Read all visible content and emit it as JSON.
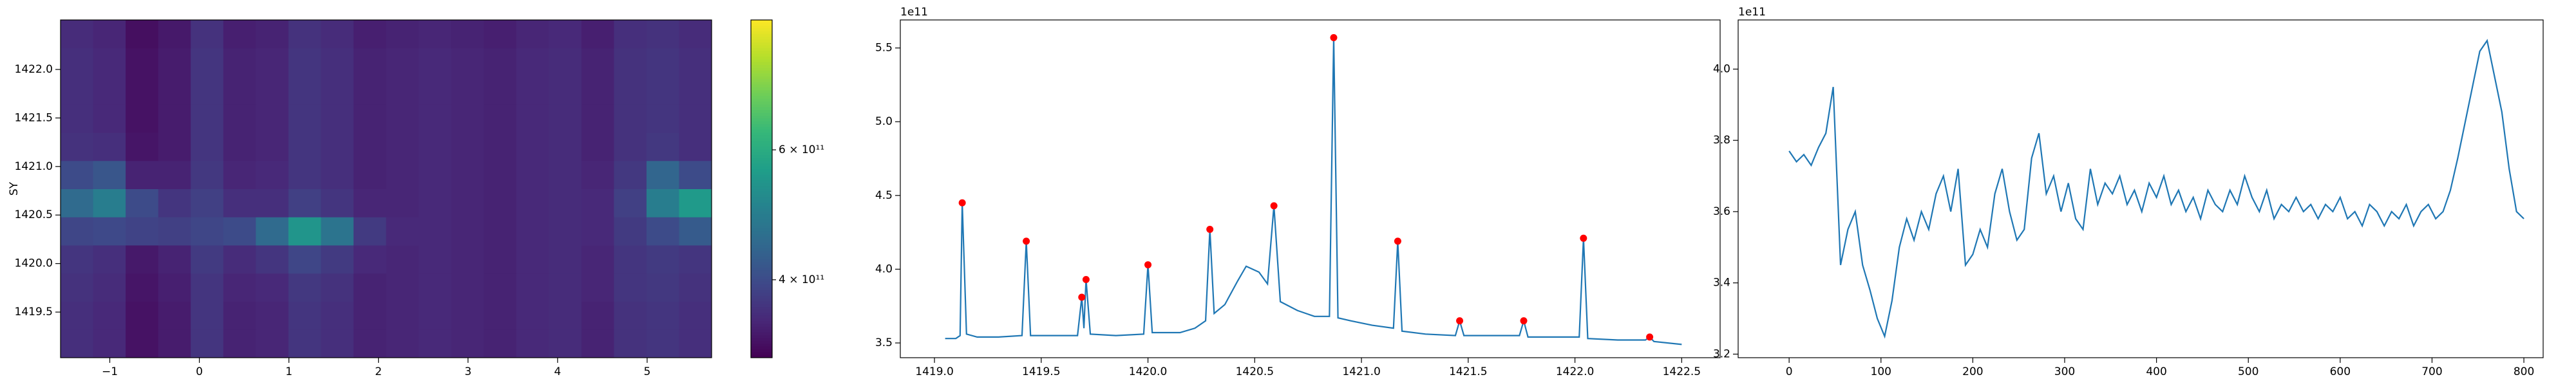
{
  "chart_data": [
    {
      "type": "heatmap",
      "ylabel": "SY",
      "colormap": "viridis",
      "xlim": [
        -1.55,
        5.72
      ],
      "ylim": [
        1419.03,
        1422.51
      ],
      "xticks": [
        {
          "value": -1,
          "label": "−1"
        },
        0,
        1,
        2,
        3,
        4,
        5
      ],
      "yticks": [
        1419.5,
        {
          "value": 1420,
          "label": "1420.0"
        },
        1420.5,
        {
          "value": 1421,
          "label": "1421.0"
        },
        1421.5,
        {
          "value": 1422,
          "label": "1422.0"
        }
      ],
      "clim": [
        280000000000.0,
        800000000000.0
      ],
      "cticks": [
        {
          "value": 400000000000.0,
          "label": "4 × 10¹¹"
        },
        {
          "value": 600000000000.0,
          "label": "6 × 10¹¹"
        }
      ],
      "z": [
        [
          350000000000.0,
          340000000000.0,
          305000000000.0,
          320000000000.0,
          360000000000.0,
          330000000000.0,
          335000000000.0,
          360000000000.0,
          350000000000.0,
          330000000000.0,
          335000000000.0,
          340000000000.0,
          335000000000.0,
          330000000000.0,
          340000000000.0,
          345000000000.0,
          330000000000.0,
          355000000000.0,
          360000000000.0,
          350000000000.0
        ],
        [
          350000000000.0,
          340000000000.0,
          305000000000.0,
          320000000000.0,
          360000000000.0,
          330000000000.0,
          335000000000.0,
          360000000000.0,
          350000000000.0,
          330000000000.0,
          335000000000.0,
          340000000000.0,
          335000000000.0,
          330000000000.0,
          340000000000.0,
          345000000000.0,
          330000000000.0,
          355000000000.0,
          360000000000.0,
          350000000000.0
        ],
        [
          355000000000.0,
          345000000000.0,
          310000000000.0,
          325000000000.0,
          360000000000.0,
          335000000000.0,
          340000000000.0,
          365000000000.0,
          355000000000.0,
          330000000000.0,
          335000000000.0,
          340000000000.0,
          335000000000.0,
          330000000000.0,
          340000000000.0,
          345000000000.0,
          335000000000.0,
          360000000000.0,
          365000000000.0,
          355000000000.0
        ],
        [
          360000000000.0,
          350000000000.0,
          315000000000.0,
          330000000000.0,
          370000000000.0,
          345000000000.0,
          360000000000.0,
          390000000000.0,
          370000000000.0,
          340000000000.0,
          335000000000.0,
          340000000000.0,
          335000000000.0,
          330000000000.0,
          340000000000.0,
          345000000000.0,
          335000000000.0,
          360000000000.0,
          370000000000.0,
          360000000000.0
        ],
        [
          390000000000.0,
          395000000000.0,
          385000000000.0,
          380000000000.0,
          390000000000.0,
          400000000000.0,
          460000000000.0,
          550000000000.0,
          480000000000.0,
          370000000000.0,
          340000000000.0,
          340000000000.0,
          335000000000.0,
          330000000000.0,
          340000000000.0,
          345000000000.0,
          340000000000.0,
          370000000000.0,
          400000000000.0,
          430000000000.0
        ],
        [
          460000000000.0,
          500000000000.0,
          400000000000.0,
          360000000000.0,
          380000000000.0,
          350000000000.0,
          350000000000.0,
          380000000000.0,
          360000000000.0,
          335000000000.0,
          335000000000.0,
          340000000000.0,
          335000000000.0,
          330000000000.0,
          340000000000.0,
          345000000000.0,
          340000000000.0,
          380000000000.0,
          500000000000.0,
          560000000000.0
        ],
        [
          400000000000.0,
          420000000000.0,
          330000000000.0,
          330000000000.0,
          365000000000.0,
          335000000000.0,
          340000000000.0,
          360000000000.0,
          350000000000.0,
          330000000000.0,
          335000000000.0,
          340000000000.0,
          335000000000.0,
          330000000000.0,
          340000000000.0,
          345000000000.0,
          335000000000.0,
          365000000000.0,
          450000000000.0,
          400000000000.0
        ],
        [
          355000000000.0,
          350000000000.0,
          310000000000.0,
          320000000000.0,
          360000000000.0,
          330000000000.0,
          335000000000.0,
          360000000000.0,
          350000000000.0,
          330000000000.0,
          335000000000.0,
          340000000000.0,
          335000000000.0,
          330000000000.0,
          340000000000.0,
          345000000000.0,
          330000000000.0,
          355000000000.0,
          365000000000.0,
          350000000000.0
        ],
        [
          350000000000.0,
          340000000000.0,
          305000000000.0,
          320000000000.0,
          360000000000.0,
          330000000000.0,
          335000000000.0,
          360000000000.0,
          350000000000.0,
          330000000000.0,
          335000000000.0,
          340000000000.0,
          335000000000.0,
          330000000000.0,
          340000000000.0,
          345000000000.0,
          330000000000.0,
          355000000000.0,
          360000000000.0,
          350000000000.0
        ],
        [
          350000000000.0,
          340000000000.0,
          305000000000.0,
          320000000000.0,
          360000000000.0,
          330000000000.0,
          335000000000.0,
          360000000000.0,
          350000000000.0,
          330000000000.0,
          335000000000.0,
          340000000000.0,
          335000000000.0,
          330000000000.0,
          340000000000.0,
          345000000000.0,
          330000000000.0,
          355000000000.0,
          360000000000.0,
          350000000000.0
        ],
        [
          350000000000.0,
          340000000000.0,
          305000000000.0,
          320000000000.0,
          360000000000.0,
          330000000000.0,
          335000000000.0,
          360000000000.0,
          350000000000.0,
          330000000000.0,
          335000000000.0,
          340000000000.0,
          335000000000.0,
          330000000000.0,
          340000000000.0,
          345000000000.0,
          330000000000.0,
          355000000000.0,
          360000000000.0,
          350000000000.0
        ],
        [
          345000000000.0,
          335000000000.0,
          300000000000.0,
          315000000000.0,
          355000000000.0,
          325000000000.0,
          330000000000.0,
          355000000000.0,
          345000000000.0,
          325000000000.0,
          330000000000.0,
          335000000000.0,
          330000000000.0,
          325000000000.0,
          335000000000.0,
          340000000000.0,
          325000000000.0,
          350000000000.0,
          355000000000.0,
          345000000000.0
        ]
      ]
    },
    {
      "type": "line",
      "offset_text": "1e11",
      "color": "#1f77b4",
      "xlim": [
        1418.84,
        1422.68
      ],
      "ylim": [
        3.4,
        5.69
      ],
      "xticks": [
        {
          "value": 1419,
          "label": "1419.0"
        },
        1419.5,
        {
          "value": 1420,
          "label": "1420.0"
        },
        1420.5,
        {
          "value": 1421,
          "label": "1421.0"
        },
        1421.5,
        {
          "value": 1422,
          "label": "1422.0"
        },
        1422.5
      ],
      "yticks": [
        3.5,
        {
          "value": 4,
          "label": "4.0"
        },
        4.5,
        {
          "value": 5,
          "label": "5.0"
        },
        5.5
      ],
      "x": [
        1419.05,
        1419.1,
        1419.12,
        1419.13,
        1419.15,
        1419.2,
        1419.3,
        1419.41,
        1419.43,
        1419.45,
        1419.55,
        1419.67,
        1419.69,
        1419.7,
        1419.71,
        1419.73,
        1419.85,
        1419.98,
        1420.0,
        1420.02,
        1420.15,
        1420.22,
        1420.27,
        1420.29,
        1420.31,
        1420.36,
        1420.42,
        1420.46,
        1420.52,
        1420.56,
        1420.59,
        1420.62,
        1420.7,
        1420.78,
        1420.85,
        1420.87,
        1420.89,
        1420.95,
        1421.05,
        1421.15,
        1421.17,
        1421.19,
        1421.3,
        1421.44,
        1421.46,
        1421.48,
        1421.6,
        1421.74,
        1421.76,
        1421.78,
        1421.9,
        1422.02,
        1422.04,
        1422.06,
        1422.2,
        1422.33,
        1422.35,
        1422.37,
        1422.5
      ],
      "values": [
        3.53,
        3.53,
        3.55,
        4.45,
        3.56,
        3.54,
        3.54,
        3.55,
        4.19,
        3.55,
        3.55,
        3.55,
        3.81,
        3.6,
        3.93,
        3.56,
        3.55,
        3.56,
        4.03,
        3.57,
        3.57,
        3.6,
        3.65,
        4.27,
        3.7,
        3.76,
        3.92,
        4.02,
        3.98,
        3.9,
        4.43,
        3.78,
        3.72,
        3.68,
        3.68,
        5.57,
        3.67,
        3.65,
        3.62,
        3.6,
        4.19,
        3.58,
        3.56,
        3.55,
        3.65,
        3.55,
        3.55,
        3.55,
        3.65,
        3.54,
        3.54,
        3.54,
        4.21,
        3.53,
        3.52,
        3.52,
        3.54,
        3.51,
        3.49
      ],
      "peaks": {
        "color": "red",
        "x": [
          1419.13,
          1419.43,
          1419.69,
          1419.71,
          1420.0,
          1420.29,
          1420.59,
          1420.87,
          1421.17,
          1421.46,
          1421.76,
          1422.04,
          1422.35
        ],
        "values": [
          4.45,
          4.19,
          3.81,
          3.93,
          4.03,
          4.27,
          4.43,
          5.57,
          4.19,
          3.65,
          3.65,
          4.21,
          3.54
        ]
      }
    },
    {
      "type": "line",
      "offset_text": "1e11",
      "color": "#1f77b4",
      "xlim": [
        -55.5,
        821
      ],
      "ylim": [
        3.19,
        4.138
      ],
      "xticks": [
        0,
        100,
        200,
        300,
        400,
        500,
        600,
        700,
        800
      ],
      "yticks": [
        3.2,
        3.4,
        3.6,
        3.8,
        {
          "value": 4,
          "label": "4.0"
        }
      ],
      "x": [
        0,
        8,
        16,
        24,
        32,
        40,
        48,
        56,
        64,
        72,
        80,
        88,
        96,
        104,
        112,
        120,
        128,
        136,
        144,
        152,
        160,
        168,
        176,
        184,
        192,
        200,
        208,
        216,
        224,
        232,
        240,
        248,
        256,
        264,
        272,
        280,
        288,
        296,
        304,
        312,
        320,
        328,
        336,
        344,
        352,
        360,
        368,
        376,
        384,
        392,
        400,
        408,
        416,
        424,
        432,
        440,
        448,
        456,
        464,
        472,
        480,
        488,
        496,
        504,
        512,
        520,
        528,
        536,
        544,
        552,
        560,
        568,
        576,
        584,
        592,
        600,
        608,
        616,
        624,
        632,
        640,
        648,
        656,
        664,
        672,
        680,
        688,
        696,
        704,
        712,
        720,
        728,
        736,
        744,
        752,
        760,
        768,
        776,
        784,
        792,
        800
      ],
      "values": [
        3.77,
        3.74,
        3.76,
        3.73,
        3.78,
        3.82,
        3.95,
        3.45,
        3.55,
        3.6,
        3.45,
        3.38,
        3.3,
        3.25,
        3.35,
        3.5,
        3.58,
        3.52,
        3.6,
        3.55,
        3.65,
        3.7,
        3.6,
        3.72,
        3.45,
        3.48,
        3.55,
        3.5,
        3.65,
        3.72,
        3.6,
        3.52,
        3.55,
        3.75,
        3.82,
        3.65,
        3.7,
        3.6,
        3.68,
        3.58,
        3.55,
        3.72,
        3.62,
        3.68,
        3.65,
        3.7,
        3.62,
        3.66,
        3.6,
        3.68,
        3.64,
        3.7,
        3.62,
        3.66,
        3.6,
        3.64,
        3.58,
        3.66,
        3.62,
        3.6,
        3.66,
        3.62,
        3.7,
        3.64,
        3.6,
        3.66,
        3.58,
        3.62,
        3.6,
        3.64,
        3.6,
        3.62,
        3.58,
        3.62,
        3.6,
        3.64,
        3.58,
        3.6,
        3.56,
        3.62,
        3.6,
        3.56,
        3.6,
        3.58,
        3.62,
        3.56,
        3.6,
        3.62,
        3.58,
        3.6,
        3.66,
        3.75,
        3.85,
        3.95,
        4.05,
        4.08,
        3.98,
        3.88,
        3.72,
        3.6,
        3.58
      ]
    }
  ]
}
